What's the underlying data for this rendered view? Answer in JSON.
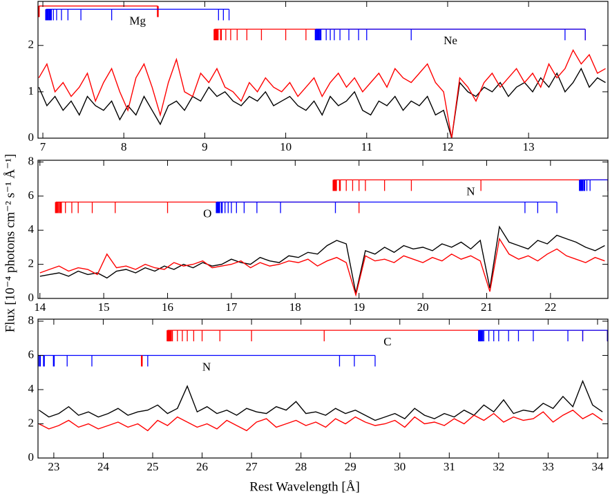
{
  "x_label": "Rest Wavelength [Å]",
  "y_label": "Flux [10⁻⁴ photons cm⁻² s⁻¹ Å⁻¹]",
  "line_label_color": "#0000ff",
  "chart_data": [
    {
      "type": "line",
      "xlim": [
        6.94,
        13.98
      ],
      "ylim": [
        0,
        2.95
      ],
      "xticks": [
        7,
        8,
        9,
        10,
        11,
        12,
        13
      ],
      "yticks": [
        0,
        1,
        2
      ],
      "x": [
        6.95,
        7.05,
        7.15,
        7.25,
        7.35,
        7.45,
        7.55,
        7.65,
        7.75,
        7.85,
        7.95,
        8.05,
        8.15,
        8.25,
        8.35,
        8.45,
        8.55,
        8.65,
        8.75,
        8.85,
        8.95,
        9.05,
        9.15,
        9.25,
        9.35,
        9.45,
        9.55,
        9.65,
        9.75,
        9.85,
        9.95,
        10.05,
        10.15,
        10.25,
        10.35,
        10.45,
        10.55,
        10.65,
        10.75,
        10.85,
        10.95,
        11.05,
        11.15,
        11.25,
        11.35,
        11.45,
        11.55,
        11.65,
        11.75,
        11.85,
        11.95,
        12.05,
        12.15,
        12.25,
        12.35,
        12.45,
        12.55,
        12.65,
        12.75,
        12.85,
        12.95,
        13.05,
        13.15,
        13.25,
        13.35,
        13.45,
        13.55,
        13.65,
        13.75,
        13.85,
        13.95
      ],
      "series": [
        {
          "color": "#000000",
          "values": [
            1.1,
            0.7,
            0.9,
            0.6,
            0.8,
            0.5,
            0.9,
            0.7,
            0.6,
            0.8,
            0.4,
            0.7,
            0.5,
            0.9,
            0.6,
            0.3,
            0.7,
            0.8,
            0.6,
            0.9,
            0.8,
            1.1,
            0.9,
            1.0,
            0.8,
            0.7,
            0.9,
            0.8,
            1.0,
            0.7,
            0.8,
            0.9,
            0.7,
            0.6,
            0.8,
            0.5,
            0.9,
            0.7,
            0.8,
            1.0,
            0.6,
            0.5,
            0.8,
            0.7,
            0.9,
            0.6,
            0.8,
            0.7,
            0.9,
            0.5,
            0.6,
            0.0,
            1.2,
            1.0,
            0.9,
            1.1,
            1.0,
            1.2,
            0.9,
            1.1,
            1.2,
            1.0,
            1.3,
            1.1,
            1.4,
            1.0,
            1.2,
            1.5,
            1.1,
            1.3,
            1.2
          ]
        },
        {
          "color": "#ff0000",
          "values": [
            1.3,
            1.6,
            1.0,
            1.2,
            0.9,
            1.1,
            1.4,
            0.8,
            1.2,
            1.5,
            1.0,
            0.6,
            1.3,
            1.6,
            1.1,
            0.5,
            1.2,
            1.7,
            1.0,
            0.9,
            1.4,
            1.2,
            1.5,
            1.1,
            1.0,
            0.8,
            1.2,
            1.0,
            1.3,
            1.1,
            1.0,
            1.2,
            0.9,
            1.1,
            1.3,
            0.9,
            1.2,
            1.4,
            1.1,
            1.3,
            1.0,
            1.2,
            1.4,
            1.1,
            1.5,
            1.3,
            1.2,
            1.4,
            1.6,
            1.2,
            1.0,
            0.0,
            1.3,
            1.1,
            0.8,
            1.2,
            1.4,
            1.1,
            1.3,
            1.5,
            1.2,
            1.4,
            1.1,
            1.6,
            1.3,
            1.5,
            1.9,
            1.6,
            1.8,
            1.4,
            1.5
          ]
        }
      ],
      "line_series": [
        {
          "color": "#ff0000",
          "level": 2.85,
          "positions": [
            6.95,
            8.42
          ]
        },
        {
          "label": "Mg",
          "color": "#0000ff",
          "level": 2.78,
          "positions": [
            7.04,
            7.06,
            7.08,
            7.1,
            7.13,
            7.17,
            7.23,
            7.31,
            7.47,
            7.85,
            9.17,
            9.23,
            9.3
          ]
        },
        {
          "color": "#ff0000",
          "level": 2.35,
          "positions": [
            9.12,
            9.14,
            9.16,
            9.2,
            9.26,
            9.32,
            9.4,
            9.52,
            9.7,
            10.0,
            10.25,
            13.7
          ]
        },
        {
          "label": "Ne",
          "color": "#0000ff",
          "level": 2.35,
          "positions": [
            10.37,
            10.39,
            10.41,
            10.43,
            10.5,
            10.55,
            10.6,
            10.67,
            10.78,
            10.9,
            11.0,
            11.55,
            13.45,
            13.7
          ]
        }
      ]
    },
    {
      "type": "line",
      "xlim": [
        13.97,
        22.9
      ],
      "ylim": [
        0,
        8.1
      ],
      "xticks": [
        14,
        15,
        16,
        17,
        18,
        19,
        20,
        21,
        22
      ],
      "yticks": [
        0,
        2,
        4,
        6,
        8
      ],
      "x": [
        14.0,
        14.15,
        14.3,
        14.45,
        14.6,
        14.75,
        14.9,
        15.05,
        15.2,
        15.35,
        15.5,
        15.65,
        15.8,
        15.95,
        16.1,
        16.25,
        16.4,
        16.55,
        16.7,
        16.85,
        17.0,
        17.15,
        17.3,
        17.45,
        17.6,
        17.75,
        17.9,
        18.05,
        18.2,
        18.35,
        18.5,
        18.65,
        18.8,
        18.95,
        19.1,
        19.25,
        19.4,
        19.55,
        19.7,
        19.85,
        20.0,
        20.15,
        20.3,
        20.45,
        20.6,
        20.75,
        20.9,
        21.05,
        21.2,
        21.35,
        21.5,
        21.65,
        21.8,
        21.95,
        22.1,
        22.25,
        22.4,
        22.55,
        22.7,
        22.85
      ],
      "series": [
        {
          "color": "#000000",
          "values": [
            1.3,
            1.4,
            1.5,
            1.3,
            1.6,
            1.4,
            1.5,
            1.2,
            1.6,
            1.7,
            1.5,
            1.8,
            1.6,
            1.9,
            1.7,
            2.0,
            1.8,
            2.1,
            1.9,
            2.0,
            2.3,
            2.1,
            2.0,
            2.4,
            2.2,
            2.1,
            2.5,
            2.4,
            2.7,
            2.6,
            3.1,
            3.4,
            3.2,
            0.3,
            2.8,
            2.6,
            3.0,
            2.7,
            3.1,
            2.9,
            3.0,
            2.8,
            3.2,
            3.0,
            3.3,
            2.9,
            3.4,
            0.6,
            4.2,
            3.3,
            3.1,
            2.9,
            3.4,
            3.2,
            3.7,
            3.5,
            3.3,
            3.0,
            2.8,
            3.1
          ]
        },
        {
          "color": "#ff0000",
          "values": [
            1.5,
            1.7,
            1.9,
            1.6,
            1.8,
            1.7,
            1.4,
            2.6,
            1.8,
            1.9,
            1.7,
            2.0,
            1.8,
            1.7,
            2.1,
            1.9,
            2.0,
            2.2,
            1.8,
            1.9,
            2.0,
            2.2,
            1.8,
            2.1,
            1.9,
            2.0,
            2.2,
            2.1,
            2.3,
            1.9,
            2.2,
            2.4,
            2.1,
            0.2,
            2.5,
            2.2,
            2.3,
            2.1,
            2.5,
            2.3,
            2.1,
            2.4,
            2.2,
            2.6,
            2.3,
            2.5,
            2.2,
            0.4,
            3.5,
            2.6,
            2.3,
            2.5,
            2.2,
            2.6,
            2.9,
            2.5,
            2.3,
            2.1,
            2.4,
            2.2
          ]
        }
      ],
      "line_series": [
        {
          "label": "N",
          "color": "#ff0000",
          "level": 6.95,
          "positions": [
            18.6,
            18.62,
            18.64,
            18.7,
            18.8,
            18.9,
            19.0,
            19.1,
            19.4,
            19.82,
            20.91,
            22.9
          ]
        },
        {
          "color": "#0000ff",
          "level": 6.95,
          "positions": [
            22.46,
            22.48,
            22.5,
            22.53,
            22.57,
            22.62,
            22.9
          ]
        },
        {
          "label": "O",
          "color": "#ff0000",
          "level": 5.65,
          "positions": [
            14.25,
            14.27,
            14.3,
            14.33,
            14.4,
            14.5,
            14.6,
            14.82,
            15.18,
            16.0,
            19.0
          ]
        },
        {
          "color": "#0000ff",
          "level": 5.65,
          "positions": [
            16.77,
            16.79,
            16.81,
            16.85,
            16.9,
            16.95,
            17.0,
            17.08,
            17.2,
            17.4,
            17.77,
            18.63,
            21.6,
            21.8,
            22.1
          ]
        }
      ]
    },
    {
      "type": "line",
      "xlim": [
        22.68,
        34.21
      ],
      "ylim": [
        0,
        8.12
      ],
      "xticks": [
        23,
        24,
        25,
        26,
        27,
        28,
        29,
        30,
        31,
        32,
        33,
        34
      ],
      "yticks": [
        0,
        2,
        4,
        6,
        8
      ],
      "x": [
        22.7,
        22.9,
        23.1,
        23.3,
        23.5,
        23.7,
        23.9,
        24.1,
        24.3,
        24.5,
        24.7,
        24.9,
        25.1,
        25.3,
        25.5,
        25.7,
        25.9,
        26.1,
        26.3,
        26.5,
        26.7,
        26.9,
        27.1,
        27.3,
        27.5,
        27.7,
        27.9,
        28.1,
        28.3,
        28.5,
        28.7,
        28.9,
        29.1,
        29.3,
        29.5,
        29.7,
        29.9,
        30.1,
        30.3,
        30.5,
        30.7,
        30.9,
        31.1,
        31.3,
        31.5,
        31.7,
        31.9,
        32.1,
        32.3,
        32.5,
        32.7,
        32.9,
        33.1,
        33.3,
        33.5,
        33.7,
        33.9,
        34.1
      ],
      "series": [
        {
          "color": "#000000",
          "values": [
            2.8,
            2.4,
            2.6,
            3.0,
            2.5,
            2.7,
            2.4,
            2.6,
            2.9,
            2.5,
            2.7,
            2.8,
            3.1,
            2.6,
            2.9,
            4.2,
            2.7,
            3.0,
            2.6,
            2.8,
            2.5,
            2.9,
            2.7,
            2.6,
            3.0,
            2.8,
            3.3,
            2.6,
            2.7,
            2.5,
            2.9,
            2.6,
            2.8,
            2.5,
            2.2,
            2.4,
            2.6,
            2.3,
            2.9,
            2.5,
            2.3,
            2.6,
            2.4,
            2.8,
            2.5,
            3.1,
            2.7,
            3.4,
            2.6,
            2.8,
            2.7,
            3.2,
            2.9,
            3.6,
            3.0,
            4.5,
            3.1,
            2.7
          ]
        },
        {
          "color": "#ff0000",
          "values": [
            2.0,
            1.7,
            1.9,
            2.2,
            1.8,
            2.0,
            1.7,
            1.9,
            2.1,
            1.8,
            2.0,
            1.6,
            2.2,
            1.9,
            2.4,
            2.1,
            1.8,
            2.0,
            1.7,
            2.2,
            1.9,
            1.6,
            2.1,
            2.3,
            1.8,
            2.0,
            2.2,
            1.9,
            2.1,
            1.8,
            2.3,
            2.0,
            2.4,
            2.1,
            1.9,
            2.0,
            2.2,
            1.8,
            2.4,
            2.0,
            2.1,
            1.9,
            2.3,
            2.0,
            2.5,
            2.2,
            2.6,
            2.1,
            2.4,
            2.2,
            2.3,
            2.7,
            2.1,
            2.5,
            2.8,
            2.3,
            2.6,
            2.2
          ]
        }
      ],
      "line_series": [
        {
          "label": "C",
          "color": "#ff0000",
          "level": 7.47,
          "positions": [
            25.3,
            25.32,
            25.34,
            25.37,
            25.4,
            25.5,
            25.6,
            25.7,
            25.83,
            26.0,
            26.36,
            27.0,
            28.47,
            33.7,
            34.2
          ]
        },
        {
          "color": "#0000ff",
          "level": 7.47,
          "positions": [
            31.6,
            31.62,
            31.64,
            31.67,
            31.7,
            31.8,
            31.9,
            32.0,
            32.2,
            32.4,
            32.7,
            33.4,
            33.7,
            34.2
          ]
        },
        {
          "label": "N",
          "color": "#0000ff",
          "level": 6.0,
          "positions": [
            22.68,
            22.72,
            22.8,
            23.0,
            23.27,
            23.77,
            24.9,
            28.78,
            29.08,
            29.5
          ]
        },
        {
          "color": "#ff0000",
          "level": 6.0,
          "positions": [
            24.78
          ]
        }
      ]
    }
  ]
}
